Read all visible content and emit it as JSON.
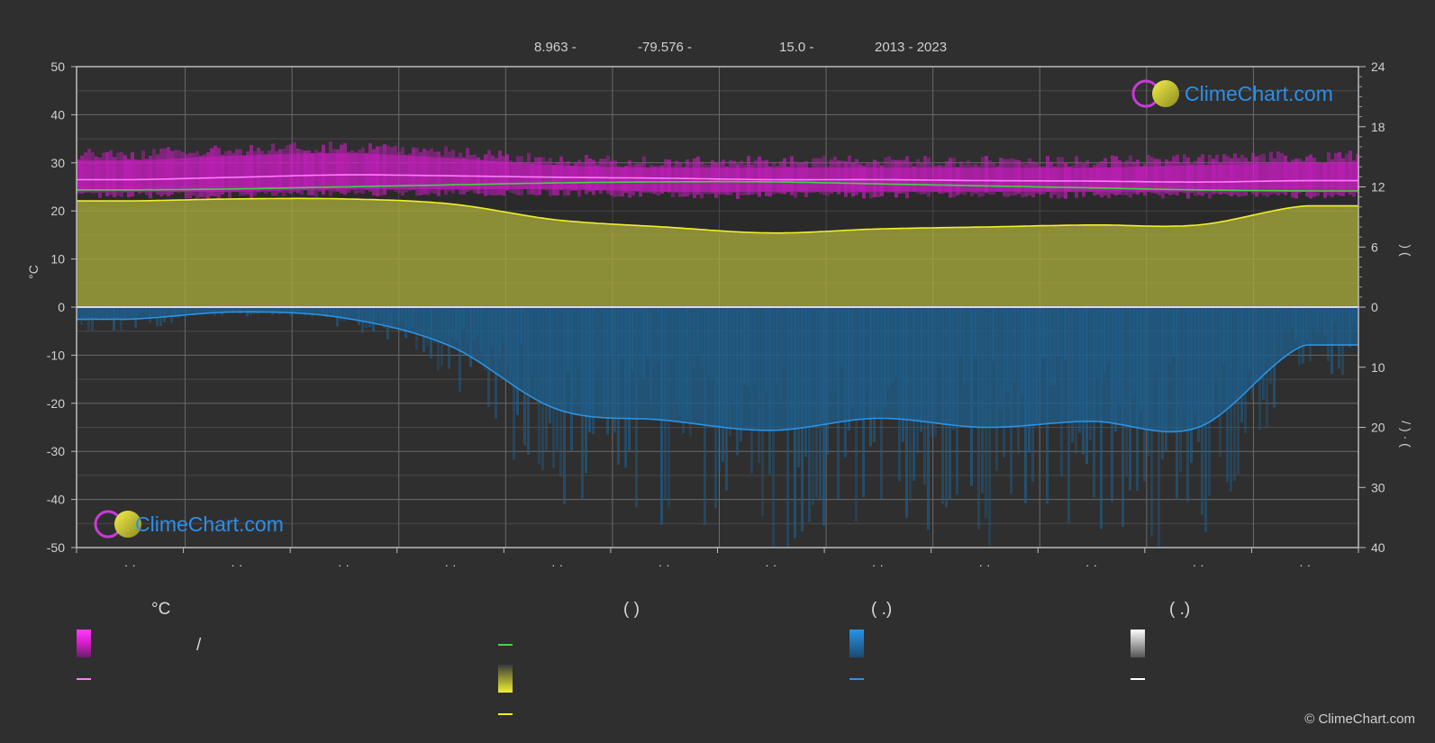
{
  "header": {
    "lat": "8.963 -",
    "lon": "-79.576 -",
    "elev": "15.0 -",
    "years": "2013 - 2023"
  },
  "colors": {
    "background": "#2f2f2f",
    "temp_band": "#d21cc9",
    "temp_mean": "#ff7cff",
    "daylight": "#3fd63f",
    "sunshine_fill": "#a7a83a",
    "sunshine_line": "#f0f02a",
    "rain_fill": "#1f5f8c",
    "rain_line": "#2a93e8",
    "brand_blue": "#2b8fea"
  },
  "axes": {
    "left_label": "°C",
    "left_ticks": [
      "50",
      "40",
      "30",
      "20",
      "10",
      "0",
      "-10",
      "-20",
      "-30",
      "-40",
      "-50"
    ],
    "right_top_ticks": [
      "24",
      "18",
      "12",
      "6",
      "0"
    ],
    "right_bottom_ticks": [
      "0",
      "10",
      "20",
      "30",
      "40"
    ],
    "right_top_label": ")   (",
    "right_bottom_label": "/   )   ·   (",
    "month_labels": [
      "· ·",
      "· ·",
      "· ·",
      "· ·",
      "· ·",
      "· ·",
      "· ·",
      "· ·",
      "· ·",
      "· ·",
      "· ·",
      "· ·"
    ]
  },
  "chart_data": {
    "type": "area",
    "x": [
      "1",
      "2",
      "3",
      "4",
      "5",
      "6",
      "7",
      "8",
      "9",
      "10",
      "11",
      "12"
    ],
    "ylim": [
      -50,
      50
    ],
    "y2_top_lim": [
      0,
      24
    ],
    "y2_bottom_lim": [
      0,
      40
    ],
    "series": [
      {
        "values": [
          26.5,
          27.0,
          27.5,
          27.3,
          27.0,
          26.8,
          26.5,
          26.5,
          26.3,
          26.2,
          26.0,
          26.3
        ]
      },
      {
        "values": [
          30.5,
          31.5,
          32.0,
          31.0,
          29.5,
          29.0,
          29.0,
          29.0,
          29.0,
          29.0,
          29.5,
          30.0
        ]
      },
      {
        "values": [
          24.0,
          24.0,
          24.5,
          24.5,
          24.5,
          24.0,
          24.0,
          24.0,
          24.0,
          24.0,
          24.0,
          24.0
        ]
      },
      {
        "values": [
          11.7,
          11.8,
          12.0,
          12.2,
          12.4,
          12.5,
          12.5,
          12.3,
          12.1,
          11.9,
          11.7,
          11.6
        ]
      },
      {
        "values": [
          10.6,
          10.8,
          10.8,
          10.3,
          8.7,
          8.0,
          7.4,
          7.8,
          8.0,
          8.2,
          8.2,
          10.1
        ]
      },
      {
        "values": [
          2.0,
          0.8,
          1.8,
          6.5,
          17.0,
          18.8,
          20.5,
          18.5,
          20.0,
          19.0,
          20.0,
          6.3
        ]
      }
    ],
    "grid": true
  },
  "legend": {
    "col1_title": "°C",
    "col1_slash": "/",
    "col2_title": "(          )",
    "col3_title": "(    .)",
    "col4_title": "(    .)"
  },
  "brand": {
    "logo_text": "ClimeChart.com",
    "copyright": "© ClimeChart.com"
  }
}
